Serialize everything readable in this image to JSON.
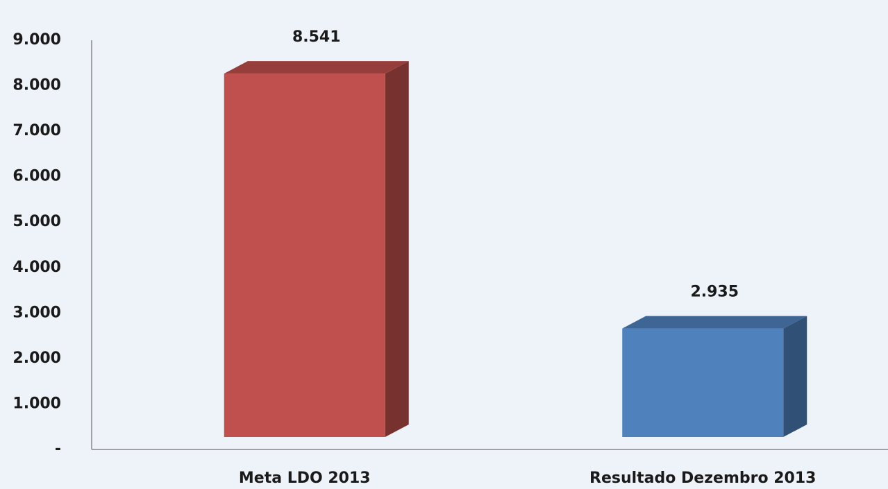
{
  "chart_data": {
    "type": "bar3d",
    "categories": [
      "Meta LDO 2013",
      "Resultado Dezembro 2013"
    ],
    "values": [
      8541,
      2935
    ],
    "value_labels": [
      "8.541",
      "2.935"
    ],
    "colors": [
      "#c0504d",
      "#4f81bd"
    ],
    "ylim": [
      0,
      9000
    ],
    "yticks": [
      {
        "value": 0,
        "label": "-"
      },
      {
        "value": 1000,
        "label": "1.000"
      },
      {
        "value": 2000,
        "label": "2.000"
      },
      {
        "value": 3000,
        "label": "3.000"
      },
      {
        "value": 4000,
        "label": "4.000"
      },
      {
        "value": 5000,
        "label": "5.000"
      },
      {
        "value": 6000,
        "label": "6.000"
      },
      {
        "value": 7000,
        "label": "7.000"
      },
      {
        "value": 8000,
        "label": "8.000"
      },
      {
        "value": 9000,
        "label": "9.000"
      }
    ],
    "grid": false
  }
}
